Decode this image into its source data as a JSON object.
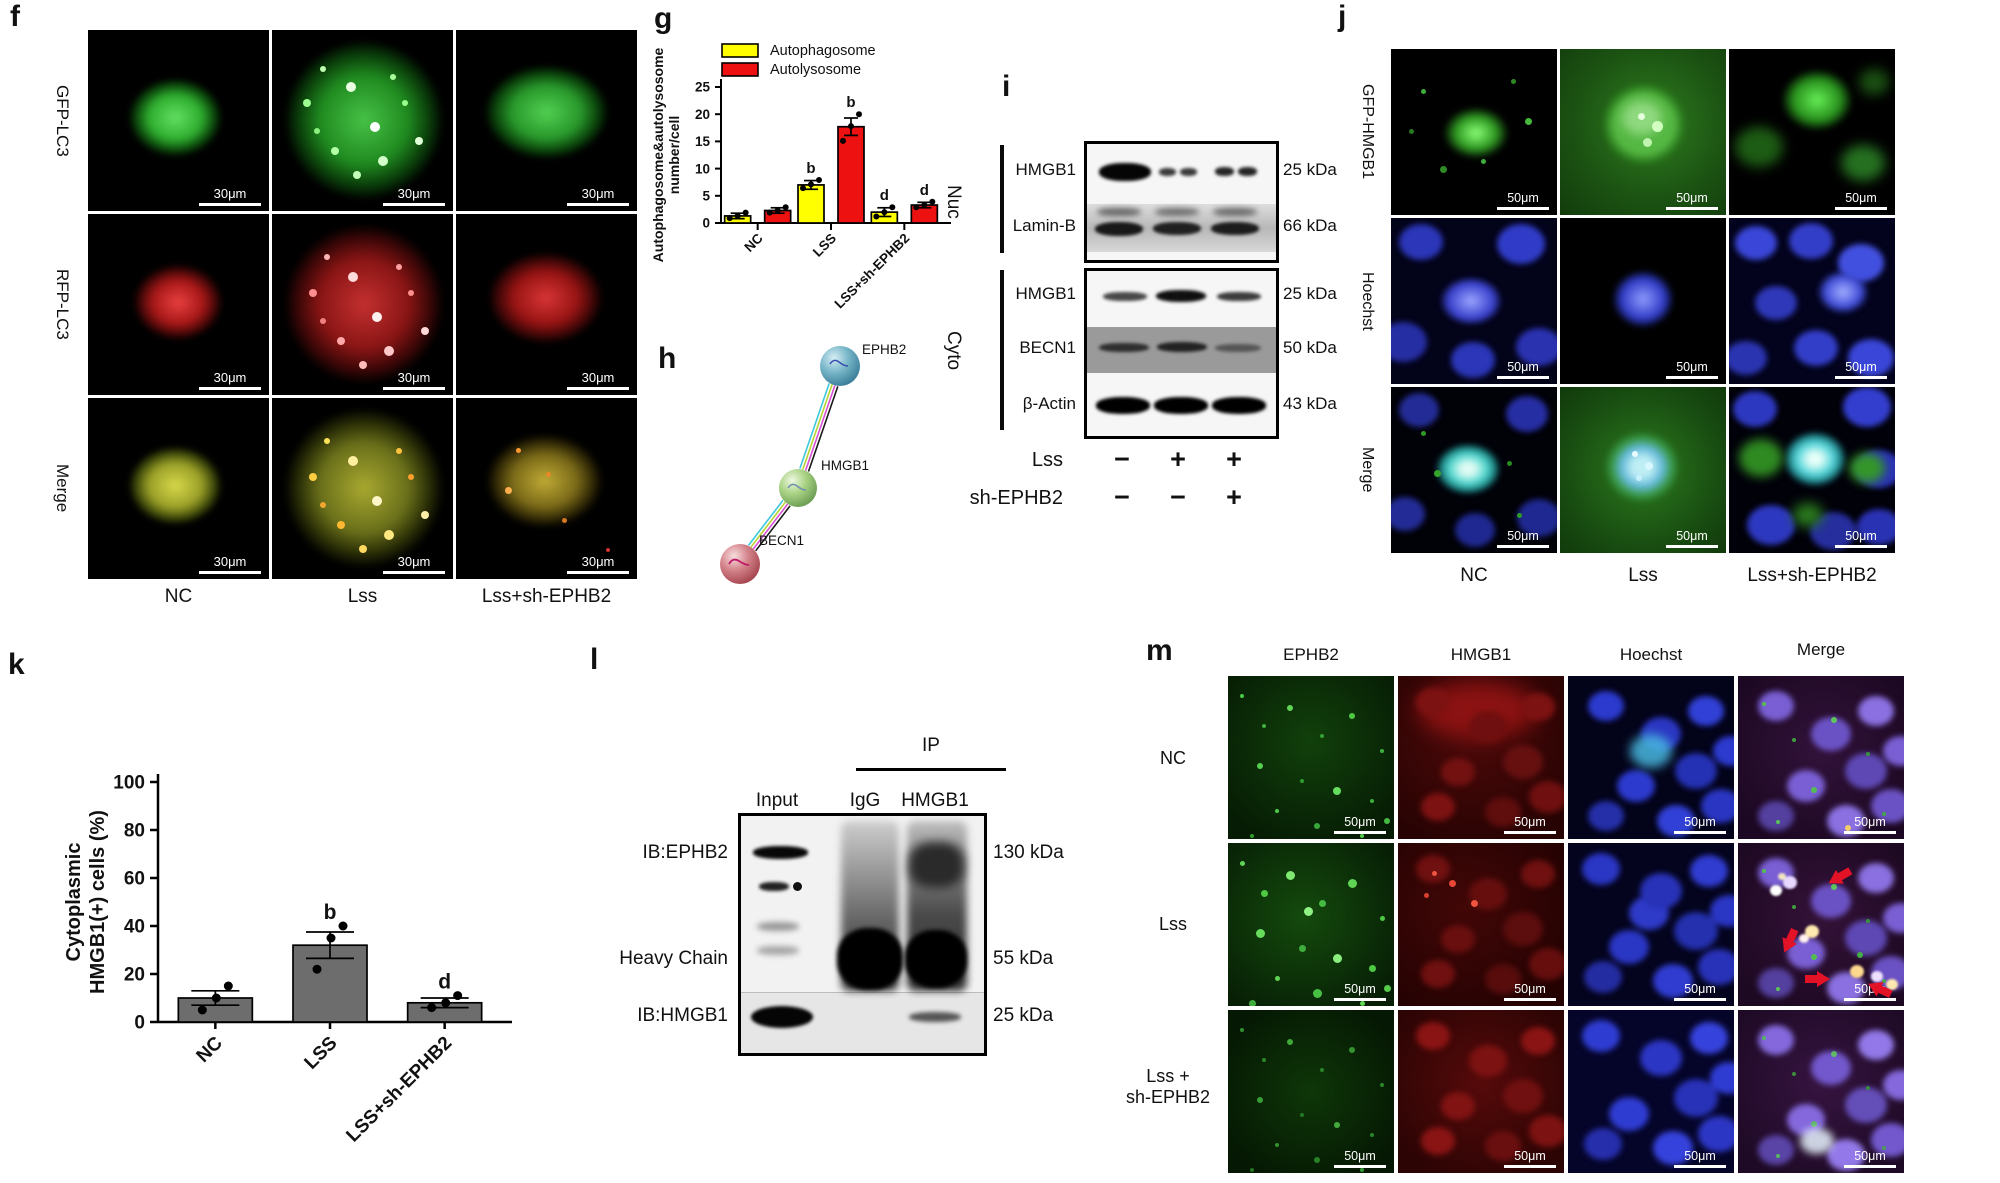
{
  "panels": {
    "f": {
      "label": "f",
      "row_labels": [
        "GFP-LC3",
        "RFP-LC3",
        "Merge"
      ],
      "col_labels": [
        "NC",
        "Lss",
        "Lss+sh-EPHB2"
      ],
      "scale_label": "30μm"
    },
    "g": {
      "label": "g"
    },
    "h": {
      "label": "h",
      "node_labels": [
        "EPHB2",
        "HMGB1",
        "BECN1"
      ]
    },
    "i": {
      "label": "i",
      "fraction_labels": [
        "Nuc",
        "Cyto"
      ],
      "nuc_rows": [
        {
          "protein": "HMGB1",
          "mw": "25 kDa"
        },
        {
          "protein": "Lamin-B",
          "mw": "66 kDa"
        }
      ],
      "cyto_rows": [
        {
          "protein": "HMGB1",
          "mw": "25 kDa"
        },
        {
          "protein": "BECN1",
          "mw": "50 kDa"
        },
        {
          "protein": "β-Actin",
          "mw": "43 kDa"
        }
      ],
      "conditions": [
        {
          "name": "Lss",
          "values": [
            "−",
            "+",
            "+"
          ]
        },
        {
          "name": "sh-EPHB2",
          "values": [
            "−",
            "−",
            "+"
          ]
        }
      ]
    },
    "j": {
      "label": "j",
      "row_labels": [
        "GFP-HMGB1",
        "Hoechst",
        "Merge"
      ],
      "col_labels": [
        "NC",
        "Lss",
        "Lss+sh-EPHB2"
      ],
      "scale_label": "50μm"
    },
    "k": {
      "label": "k"
    },
    "l": {
      "label": "l",
      "ip_label": "IP",
      "lane_labels": [
        "Input",
        "IgG",
        "HMGB1"
      ],
      "blot_rows": [
        {
          "name": "IB:EPHB2",
          "mw": "130 kDa"
        },
        {
          "name": "Heavy Chain",
          "mw": "55 kDa"
        },
        {
          "name": "IB:HMGB1",
          "mw": "25 kDa"
        }
      ]
    },
    "m": {
      "label": "m",
      "col_labels": [
        "EPHB2",
        "HMGB1",
        "Hoechst",
        "Merge"
      ],
      "row_labels": [
        "NC",
        "Lss",
        "Lss +\nsh-EPHB2"
      ],
      "scale_label": "50μm"
    }
  },
  "chart_data": [
    {
      "id": "g",
      "type": "bar",
      "title": "",
      "ylabel": "Autophagosome&autolysosome\nnumber/cell",
      "xlabel": "",
      "categories": [
        "NC",
        "LSS",
        "LSS+sh-EPHB2"
      ],
      "series": [
        {
          "name": "Autophagosome",
          "color": "#ffff00",
          "values": [
            1.3,
            7.0,
            2.0
          ],
          "errors": [
            0.5,
            0.8,
            0.8
          ],
          "points": [
            [
              0.9,
              1.3,
              1.9
            ],
            [
              6.4,
              7.1,
              7.9
            ],
            [
              1.2,
              2.0,
              2.9
            ]
          ],
          "sig": [
            "",
            "b",
            "d"
          ]
        },
        {
          "name": "Autolysosome",
          "color": "#ee1111",
          "values": [
            2.3,
            17.7,
            3.3
          ],
          "errors": [
            0.5,
            1.6,
            0.5
          ],
          "points": [
            [
              1.9,
              2.3,
              2.9
            ],
            [
              15.1,
              17.8,
              20.0
            ],
            [
              2.9,
              3.3,
              3.9
            ]
          ],
          "sig": [
            "",
            "b",
            "d"
          ]
        }
      ],
      "ylim": [
        0,
        25
      ],
      "yticks": [
        0,
        5,
        10,
        15,
        20,
        25
      ],
      "grid": false,
      "legend_position": "top-left"
    },
    {
      "id": "k",
      "type": "bar",
      "title": "",
      "ylabel": "Cytoplasmic\nHMGB1(+) cells (%)",
      "xlabel": "",
      "categories": [
        "NC",
        "LSS",
        "LSS+sh-EPHB2"
      ],
      "series": [
        {
          "name": "",
          "color": "#6d6d6d",
          "values": [
            10,
            32,
            8
          ],
          "errors": [
            3,
            5.5,
            2
          ],
          "points": [
            [
              5,
              10,
              15
            ],
            [
              22,
              35,
              40
            ],
            [
              6,
              8,
              11
            ]
          ],
          "sig": [
            "",
            "b",
            "d"
          ]
        }
      ],
      "ylim": [
        0,
        100
      ],
      "yticks": [
        0,
        20,
        40,
        60,
        80,
        100
      ],
      "grid": false,
      "legend_position": "none"
    }
  ]
}
